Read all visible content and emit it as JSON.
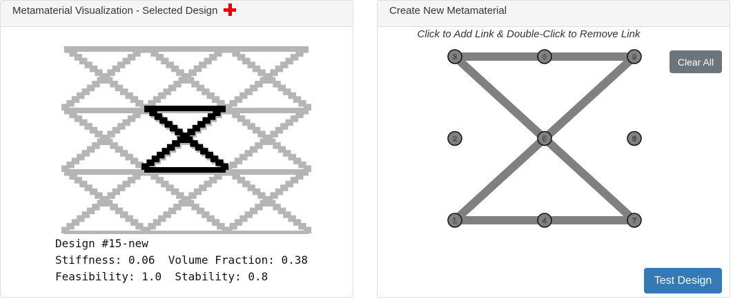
{
  "left_panel": {
    "title": "Metamaterial Visualization - Selected Design",
    "design": "Design #15-new",
    "metrics": [
      [
        {
          "label": "Stiffness:",
          "value": "0.06"
        },
        {
          "label": "Volume Fraction:",
          "value": "0.38"
        }
      ],
      [
        {
          "label": "Feasibility:",
          "value": "1.0"
        },
        {
          "label": "Stability:",
          "value": "0.8"
        }
      ]
    ]
  },
  "right_panel": {
    "title": "Create New Metamaterial",
    "instruction": "Click to Add Link & Double-Click to Remove Link",
    "nodes": [
      "1",
      "2",
      "3",
      "4",
      "5",
      "6",
      "7",
      "8",
      "9"
    ],
    "clear_button": "Clear All",
    "test_button": "Test Design"
  }
}
